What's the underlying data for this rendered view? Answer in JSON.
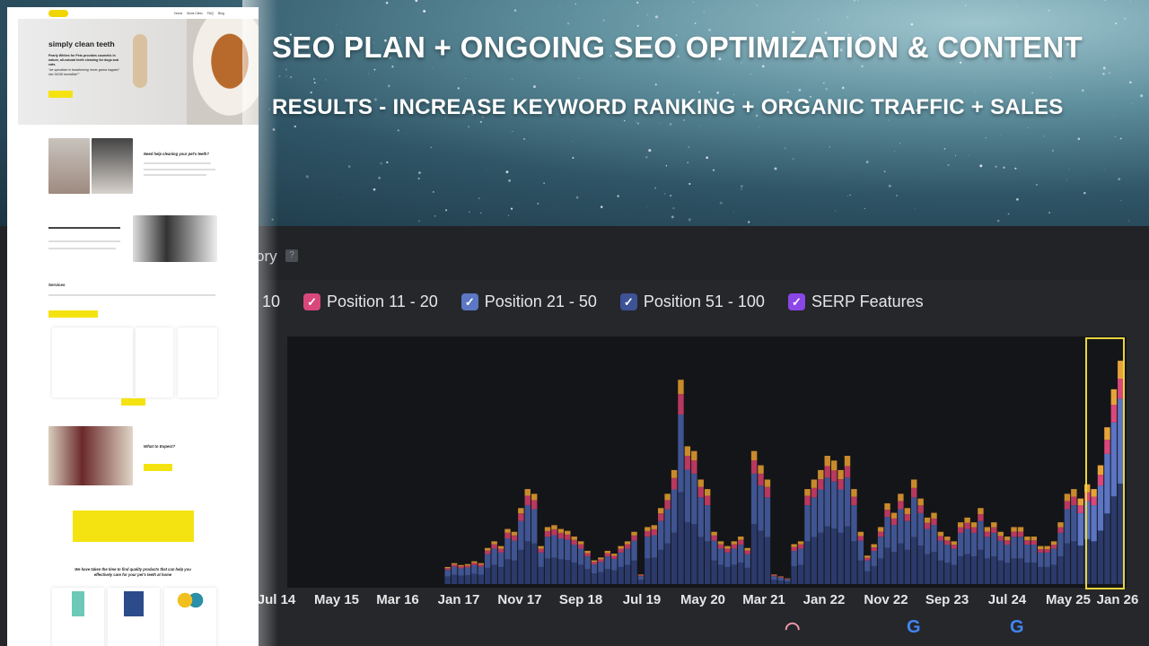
{
  "headline": {
    "line1": "SEO PLAN + ONGOING SEO OPTIMIZATION & CONTENT",
    "line2": "RESULTS - INCREASE KEYWORD RANKING  + ORGANIC TRAFFIC + SALES"
  },
  "website": {
    "nav": [
      "Home",
      "Book Clinic",
      "FAQ",
      "Blog"
    ],
    "hero_title": "simply clean teeth",
    "hero_text": "Pearly Whites for Pets provides cosmetic in nature, all-natural teeth cleaning for dogs and cats.",
    "hero_quote": "\"we specialize in transforming 'never gonna happen!' into 'WOW incredible!'\"",
    "help_title": "Need help cleaning your pet's teeth?",
    "services_title": "Services",
    "expect_title": "What to Expect?",
    "products_title": "We have taken the time to find quality products that can help you effectively care for your pet's teeth at home"
  },
  "panel": {
    "title_fragment": "ory",
    "help": "?"
  },
  "legend": [
    {
      "label": "10",
      "color": "#e0a236",
      "partial": true
    },
    {
      "label": "Position 11 - 20",
      "color": "#d9477b"
    },
    {
      "label": "Position 21 - 50",
      "color": "#5c77c4"
    },
    {
      "label": "Position 51 - 100",
      "color": "#3e5296"
    },
    {
      "label": "SERP Features",
      "color": "#8b46e8"
    }
  ],
  "chart_data": {
    "type": "bar",
    "stacked": true,
    "title": "",
    "xlabel": "",
    "ylabel": "",
    "x_tick_labels": [
      "Jul 14",
      "May 15",
      "Mar 16",
      "Jan 17",
      "Nov 17",
      "Sep 18",
      "Jul 19",
      "May 20",
      "Mar 21",
      "Jan 22",
      "Nov 22",
      "Sep 23",
      "Jul 24",
      "May 25",
      "Jan 26"
    ],
    "ylim": [
      0,
      260
    ],
    "series_colors": {
      "top": "#c98a2c",
      "position_11_20": "#b8385f",
      "position_21_50": "#3f5491",
      "position_51_100": "#2b3a6b"
    },
    "totals_relative": [
      18,
      22,
      20,
      21,
      24,
      22,
      38,
      45,
      40,
      58,
      55,
      80,
      100,
      95,
      40,
      60,
      62,
      58,
      56,
      50,
      45,
      35,
      25,
      28,
      35,
      32,
      40,
      45,
      55,
      10,
      60,
      62,
      80,
      95,
      120,
      215,
      145,
      140,
      110,
      100,
      55,
      45,
      40,
      45,
      50,
      38,
      140,
      125,
      110,
      10,
      8,
      6,
      42,
      45,
      100,
      110,
      120,
      135,
      130,
      120,
      135,
      100,
      55,
      30,
      42,
      60,
      85,
      75,
      95,
      80,
      110,
      90,
      70,
      75,
      55,
      50,
      45,
      65,
      70,
      65,
      80,
      60,
      65,
      55,
      50,
      60,
      60,
      50,
      50,
      40,
      40,
      45,
      65,
      95,
      100,
      90,
      105,
      100,
      125,
      165,
      205,
      235
    ],
    "highlighted_range": [
      "May 25",
      "Jan 26"
    ],
    "grid": false,
    "legend_placement": "top"
  },
  "events": [
    "rainbow-icon",
    "google-icon",
    "google-icon"
  ]
}
